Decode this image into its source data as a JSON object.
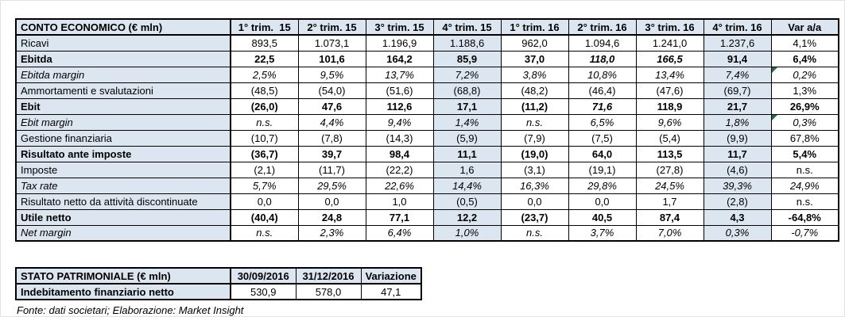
{
  "income_statement": {
    "title": "CONTO ECONOMICO (€ mln)",
    "quarter_headers": [
      "1° trim.  15",
      "2° trim. 15",
      "3° trim. 15",
      "4° trim. 15",
      "1° trim. 16",
      "2° trim. 16",
      "3° trim. 16",
      "4° trim. 16"
    ],
    "var_header": "Var a/a",
    "highlight_columns": [
      3,
      7
    ],
    "rows": [
      {
        "label": "Ricavi",
        "weight": "normal",
        "values": [
          "893,5",
          "1.073,1",
          "1.196,9",
          "1.188,6",
          "962,0",
          "1.094,6",
          "1.241,0",
          "1.237,6"
        ],
        "var": "4,1%"
      },
      {
        "label": "Ebitda",
        "weight": "bold",
        "values": [
          "22,5",
          "101,6",
          "164,2",
          "85,9",
          "37,0",
          "118,0",
          "166,5",
          "91,4"
        ],
        "var": "6,4%",
        "italic_value_cols": [
          5,
          6
        ]
      },
      {
        "label": "Ebitda margin",
        "weight": "italic",
        "values": [
          "2,5%",
          "9,5%",
          "13,7%",
          "7,2%",
          "3,8%",
          "10,8%",
          "13,4%",
          "7,4%"
        ],
        "var": "0,2%",
        "var_flag": true
      },
      {
        "label": "Ammortamenti e svalutazioni",
        "weight": "normal",
        "values": [
          "(48,5)",
          "(54,0)",
          "(51,6)",
          "(68,8)",
          "(48,2)",
          "(46,4)",
          "(47,6)",
          "(69,7)"
        ],
        "var": "1,3%"
      },
      {
        "label": "Ebit",
        "weight": "bold",
        "values": [
          "(26,0)",
          "47,6",
          "112,6",
          "17,1",
          "(11,2)",
          "71,6",
          "118,9",
          "21,7"
        ],
        "var": "26,9%",
        "italic_value_cols": [
          5
        ]
      },
      {
        "label": "Ebit margin",
        "weight": "italic",
        "values": [
          "n.s.",
          "4,4%",
          "9,4%",
          "1,4%",
          "n.s.",
          "6,5%",
          "9,6%",
          "1,8%"
        ],
        "var": "0,3%",
        "var_flag": true
      },
      {
        "label": "Gestione finanziaria",
        "weight": "normal",
        "values": [
          "(10,7)",
          "(7,8)",
          "(14,3)",
          "(5,9)",
          "(7,9)",
          "(7,5)",
          "(5,4)",
          "(9,9)"
        ],
        "var": "67,8%"
      },
      {
        "label": "Risultato ante imposte",
        "weight": "bold",
        "values": [
          "(36,7)",
          "39,7",
          "98,4",
          "11,1",
          "(19,0)",
          "64,0",
          "113,5",
          "11,7"
        ],
        "var": "5,4%"
      },
      {
        "label": "Imposte",
        "weight": "normal",
        "values": [
          "(2,1)",
          "(11,7)",
          "(22,2)",
          "1,6",
          "(3,1)",
          "(19,1)",
          "(27,8)",
          "(4,6)"
        ],
        "var": "n.s."
      },
      {
        "label": "Tax rate",
        "weight": "italic",
        "values": [
          "5,7%",
          "29,5%",
          "22,6%",
          "14,4%",
          "16,3%",
          "29,8%",
          "24,5%",
          "39,3%"
        ],
        "var": "24,9%"
      },
      {
        "label": "Risultato netto da attività discontinuate",
        "weight": "normal",
        "values": [
          "0,0",
          "0,0",
          "1,0",
          "(0,5)",
          "0,0",
          "0,0",
          "1,7",
          "(2,8)"
        ],
        "var": "n.s."
      },
      {
        "label": "Utile netto",
        "weight": "bold",
        "values": [
          "(40,4)",
          "24,8",
          "77,1",
          "12,2",
          "(23,7)",
          "40,5",
          "87,4",
          "4,3"
        ],
        "var": "-64,8%"
      },
      {
        "label": "Net margin",
        "weight": "italic",
        "values": [
          "n.s.",
          "2,3%",
          "6,4%",
          "1,0%",
          "n.s.",
          "3,7%",
          "7,0%",
          "0,3%"
        ],
        "var": "-0,7%"
      }
    ]
  },
  "balance_sheet": {
    "title": "STATO PATRIMONIALE (€ mln)",
    "columns": [
      "30/09/2016",
      "31/12/2016",
      "Variazione"
    ],
    "rows": [
      {
        "label": "Indebitamento finanziario netto",
        "weight": "bold",
        "values": [
          "530,9",
          "578,0",
          "47,1"
        ]
      }
    ]
  },
  "footer": {
    "source_note": "Fonte: dati societari; Elaborazione: Market Insight"
  },
  "colors": {
    "header_fill": "#dce6f1",
    "highlight_fill": "#dce6f1",
    "border": "#000000",
    "flag_green": "#1e7145"
  }
}
